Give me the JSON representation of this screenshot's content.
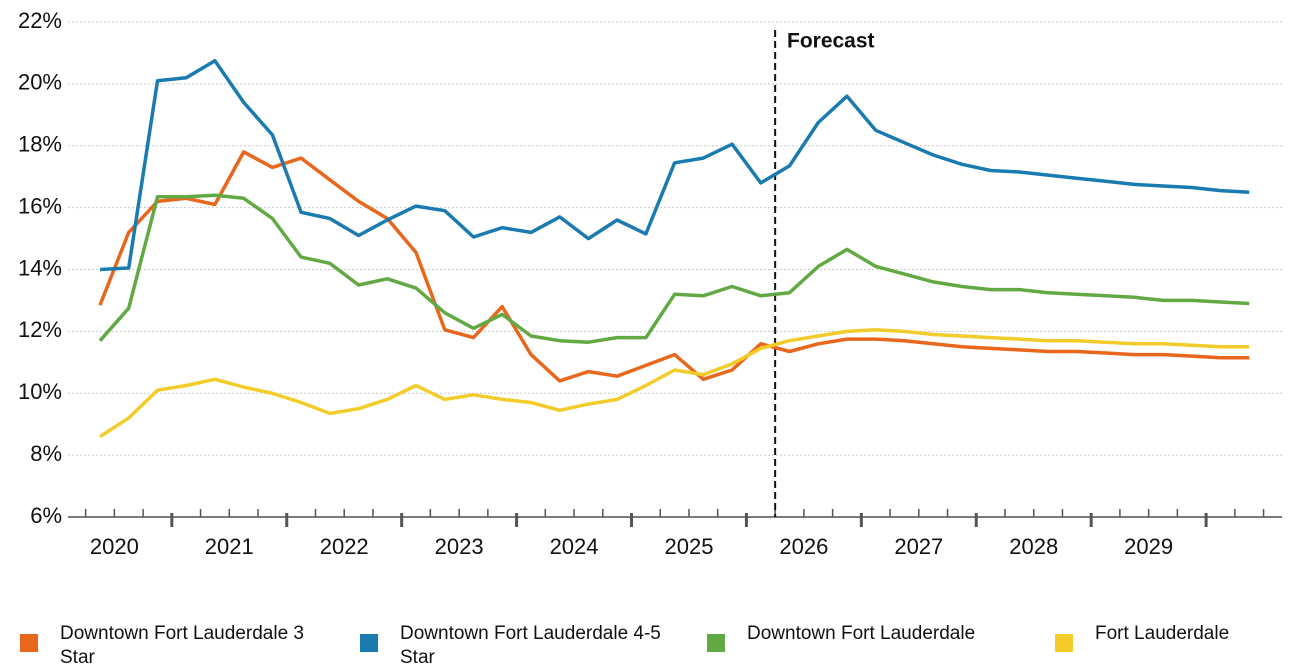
{
  "chart_data": {
    "type": "line",
    "annotation": "Forecast",
    "categories": [
      "2020",
      null,
      null,
      "2021",
      null,
      null,
      null,
      "2022",
      null,
      null,
      null,
      "2023",
      null,
      null,
      null,
      "2024",
      null,
      null,
      null,
      "2025",
      null,
      null,
      null,
      "2026",
      null,
      null,
      null,
      "2027",
      null,
      null,
      null,
      "2028",
      null,
      null,
      null,
      "2029",
      null,
      null,
      null,
      null,
      null
    ],
    "ylim": [
      6,
      22
    ],
    "yticks": [
      {
        "value": 6,
        "label": "6%"
      },
      {
        "value": 8,
        "label": "8%"
      },
      {
        "value": 10,
        "label": "10%"
      },
      {
        "value": 12,
        "label": "12%"
      },
      {
        "value": 14,
        "label": "14%"
      },
      {
        "value": 16,
        "label": "16%"
      },
      {
        "value": 18,
        "label": "18%"
      },
      {
        "value": 20,
        "label": "20%"
      },
      {
        "value": 22,
        "label": "22%"
      }
    ],
    "grid": true,
    "series": [
      {
        "name": "Downtown Fort Lauderdale 3 Star",
        "color": "#e8671c",
        "values": [
          12.85,
          15.2,
          16.2,
          16.3,
          16.1,
          17.8,
          17.3,
          17.6,
          16.9,
          16.2,
          15.65,
          14.55,
          12.05,
          11.8,
          12.8,
          11.25,
          10.4,
          10.7,
          10.55,
          10.9,
          11.25,
          10.45,
          10.75,
          11.6,
          11.35,
          11.6,
          11.75,
          11.75,
          11.7,
          11.6,
          11.5,
          11.45,
          11.4,
          11.35,
          11.35,
          11.3,
          11.25,
          11.25,
          11.2,
          11.15,
          11.15
        ]
      },
      {
        "name": "Downtown Fort Lauderdale 4-5 Star",
        "color": "#1a7bb0",
        "values": [
          14.0,
          14.05,
          20.1,
          20.2,
          20.75,
          19.4,
          18.35,
          15.85,
          15.65,
          15.1,
          15.6,
          16.05,
          15.9,
          15.05,
          15.35,
          15.2,
          15.7,
          15.0,
          15.6,
          15.15,
          17.45,
          17.6,
          18.05,
          16.8,
          17.35,
          18.75,
          19.6,
          18.5,
          18.1,
          17.7,
          17.4,
          17.2,
          17.15,
          17.05,
          16.95,
          16.85,
          16.75,
          16.7,
          16.65,
          16.55,
          16.5
        ]
      },
      {
        "name": "Downtown Fort Lauderdale",
        "color": "#62a944",
        "values": [
          11.7,
          12.75,
          16.35,
          16.35,
          16.4,
          16.3,
          15.65,
          14.4,
          14.2,
          13.5,
          13.7,
          13.4,
          12.6,
          12.1,
          12.55,
          11.85,
          11.7,
          11.65,
          11.8,
          11.8,
          13.2,
          13.15,
          13.45,
          13.15,
          13.25,
          14.1,
          14.65,
          14.1,
          13.85,
          13.6,
          13.45,
          13.35,
          13.35,
          13.25,
          13.2,
          13.15,
          13.1,
          13.0,
          13.0,
          12.95,
          12.9
        ]
      },
      {
        "name": "Fort Lauderdale",
        "color": "#f3cc2a",
        "values": [
          8.6,
          9.2,
          10.1,
          10.25,
          10.45,
          10.2,
          10.0,
          9.7,
          9.35,
          9.5,
          9.8,
          10.25,
          9.8,
          9.95,
          9.8,
          9.7,
          9.45,
          9.65,
          9.8,
          10.25,
          10.75,
          10.6,
          10.95,
          11.45,
          11.7,
          11.85,
          12.0,
          12.05,
          12.0,
          11.9,
          11.85,
          11.8,
          11.75,
          11.7,
          11.7,
          11.65,
          11.6,
          11.6,
          11.55,
          11.5,
          11.5
        ]
      }
    ]
  }
}
